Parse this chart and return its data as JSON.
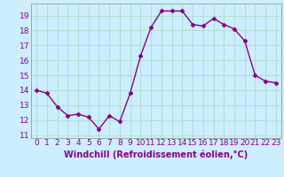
{
  "x": [
    0,
    1,
    2,
    3,
    4,
    5,
    6,
    7,
    8,
    9,
    10,
    11,
    12,
    13,
    14,
    15,
    16,
    17,
    18,
    19,
    20,
    21,
    22,
    23
  ],
  "y": [
    14.0,
    13.8,
    12.9,
    12.3,
    12.4,
    12.2,
    11.4,
    12.3,
    11.9,
    13.8,
    16.3,
    18.2,
    19.3,
    19.3,
    19.3,
    18.4,
    18.3,
    18.8,
    18.4,
    18.1,
    17.3,
    15.0,
    14.6,
    14.5
  ],
  "line_color": "#880088",
  "marker": "D",
  "marker_size": 2.5,
  "bg_color": "#cceeff",
  "grid_color": "#aaddcc",
  "xlabel": "Windchill (Refroidissement éolien,°C)",
  "xlim": [
    -0.5,
    23.5
  ],
  "ylim": [
    10.8,
    19.8
  ],
  "yticks": [
    11,
    12,
    13,
    14,
    15,
    16,
    17,
    18,
    19
  ],
  "xticks": [
    0,
    1,
    2,
    3,
    4,
    5,
    6,
    7,
    8,
    9,
    10,
    11,
    12,
    13,
    14,
    15,
    16,
    17,
    18,
    19,
    20,
    21,
    22,
    23
  ],
  "tick_color": "#880088",
  "label_color": "#880088",
  "tick_fontsize": 6.5,
  "xlabel_fontsize": 7.0,
  "linewidth": 1.0
}
